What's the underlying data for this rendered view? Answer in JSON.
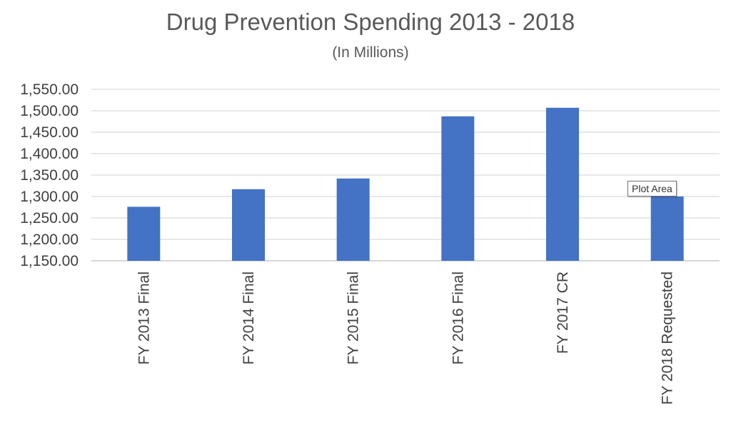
{
  "chart_data": {
    "type": "bar",
    "title": "Drug Prevention Spending 2013 - 2018",
    "subtitle": "(In Millions)",
    "xlabel": "",
    "ylabel": "",
    "categories": [
      "FY 2013 Final",
      "FY 2014 Final",
      "FY 2015 Final",
      "FY 2016 Final",
      "FY 2017 CR",
      "FY 2018 Requested"
    ],
    "values": [
      1276,
      1317,
      1342,
      1487,
      1507,
      1300
    ],
    "ylim": [
      1150,
      1550
    ],
    "yticks": [
      1150,
      1200,
      1250,
      1300,
      1350,
      1400,
      1450,
      1500,
      1550
    ],
    "ytick_labels": [
      "1,150.00",
      "1,200.00",
      "1,250.00",
      "1,300.00",
      "1,350.00",
      "1,400.00",
      "1,450.00",
      "1,500.00",
      "1,550.00"
    ],
    "grid": true,
    "legend": "none",
    "bar_color": "#4472C4"
  },
  "tooltip": {
    "text": "Plot Area"
  }
}
